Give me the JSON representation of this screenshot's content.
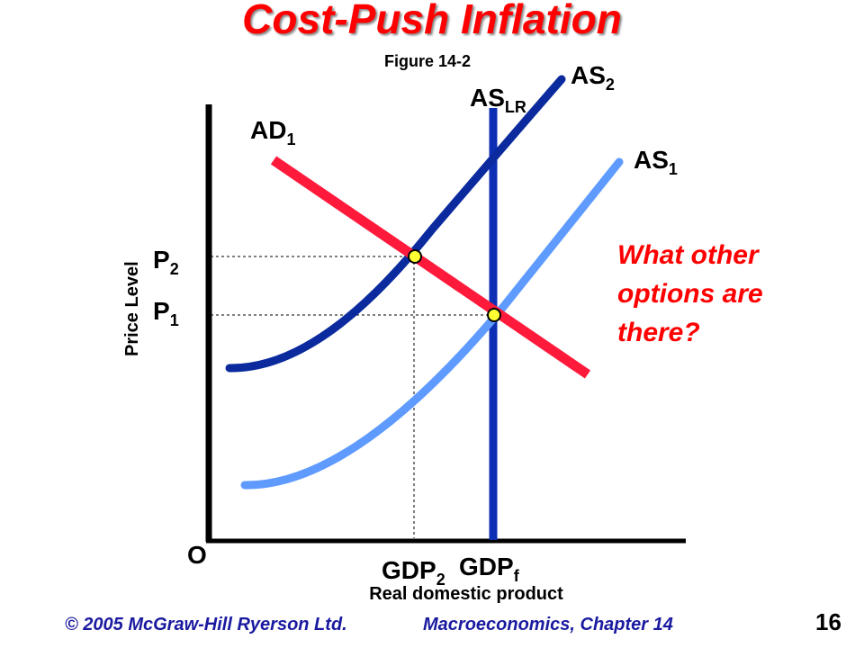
{
  "slide": {
    "title": "Cost-Push Inflation",
    "subtitle": "Figure 14-2",
    "question": "What other options are there?",
    "footer_left": "© 2005 McGraw-Hill Ryerson Ltd.",
    "footer_right": "Macroeconomics, Chapter 14",
    "page_number": "16"
  },
  "diagram": {
    "y_axis_label": "Price Level",
    "x_axis_label": "Real domestic product",
    "origin_label": "O",
    "curves": {
      "ad1": {
        "base": "AD",
        "sub": "1",
        "color": "#ff1a3c"
      },
      "as1": {
        "base": "AS",
        "sub": "1",
        "color": "#5f9bff"
      },
      "as2": {
        "base": "AS",
        "sub": "2",
        "color": "#0a2a9e"
      },
      "aslr": {
        "base": "AS",
        "sub": "LR",
        "color": "#0d2fb3"
      }
    },
    "price_levels": {
      "p1": {
        "base": "P",
        "sub": "1"
      },
      "p2": {
        "base": "P",
        "sub": "2"
      }
    },
    "output_levels": {
      "gdp2": {
        "base": "GDP",
        "sub": "2"
      },
      "gdpf": {
        "base": "GDP",
        "sub": "f"
      }
    },
    "equilibrium_color": "#ffff33"
  }
}
